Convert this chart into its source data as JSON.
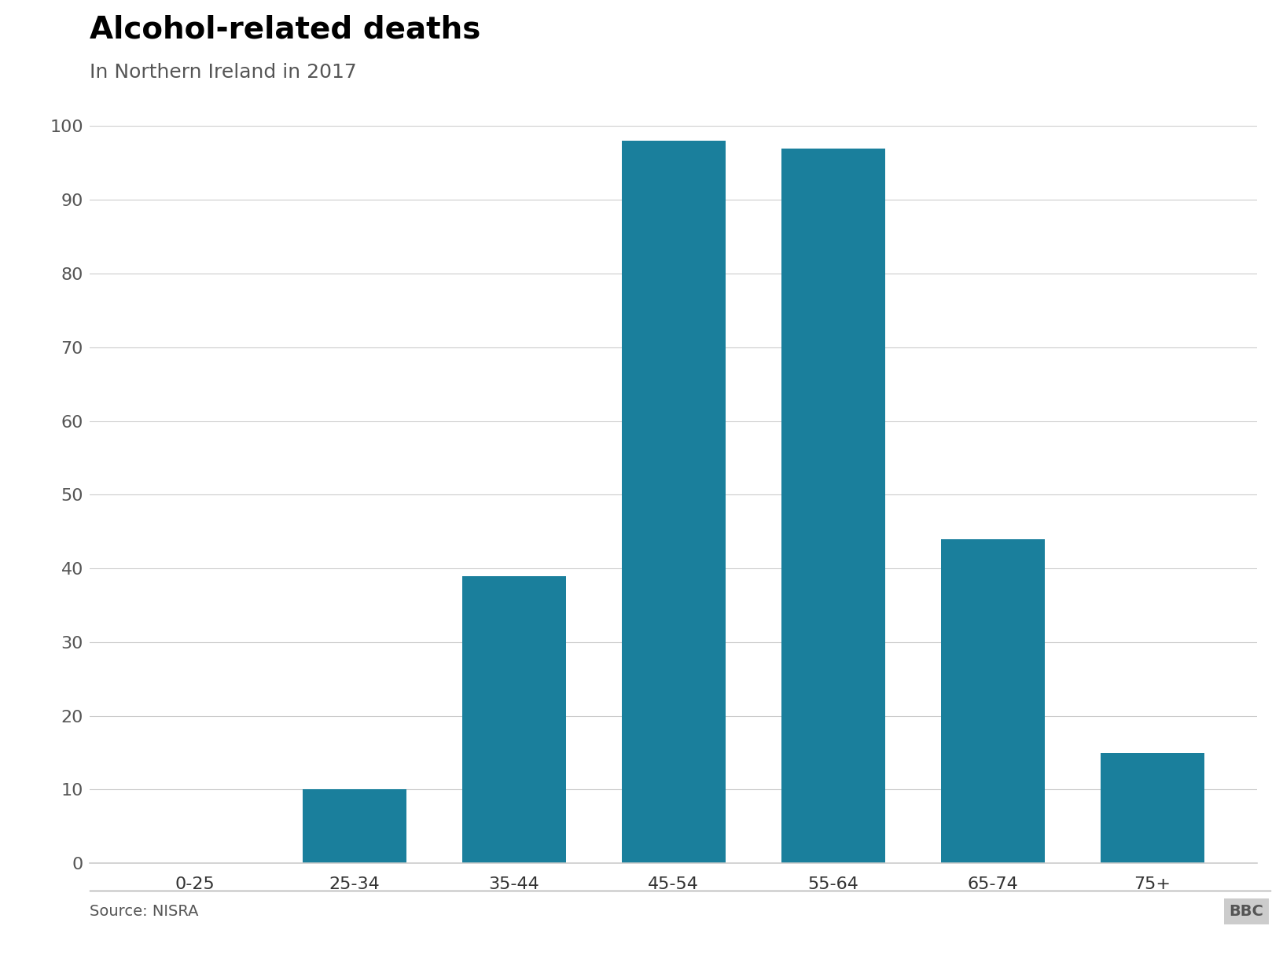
{
  "title": "Alcohol-related deaths",
  "subtitle": "In Northern Ireland in 2017",
  "categories": [
    "0-25",
    "25-34",
    "35-44",
    "45-54",
    "55-64",
    "65-74",
    "75+"
  ],
  "values": [
    0,
    10,
    39,
    98,
    97,
    44,
    15
  ],
  "bar_color": "#1a7f9c",
  "ylim": [
    0,
    100
  ],
  "yticks": [
    0,
    10,
    20,
    30,
    40,
    50,
    60,
    70,
    80,
    90,
    100
  ],
  "title_fontsize": 28,
  "subtitle_fontsize": 18,
  "tick_fontsize": 16,
  "source_text": "Source: NISRA",
  "source_fontsize": 14,
  "bbc_text": "BBC",
  "background_color": "#ffffff",
  "bar_width": 0.65,
  "grid_color": "#cccccc",
  "spine_color": "#cccccc",
  "ytick_color": "#555555",
  "xtick_color": "#333333",
  "subtitle_color": "#555555",
  "source_color": "#555555"
}
